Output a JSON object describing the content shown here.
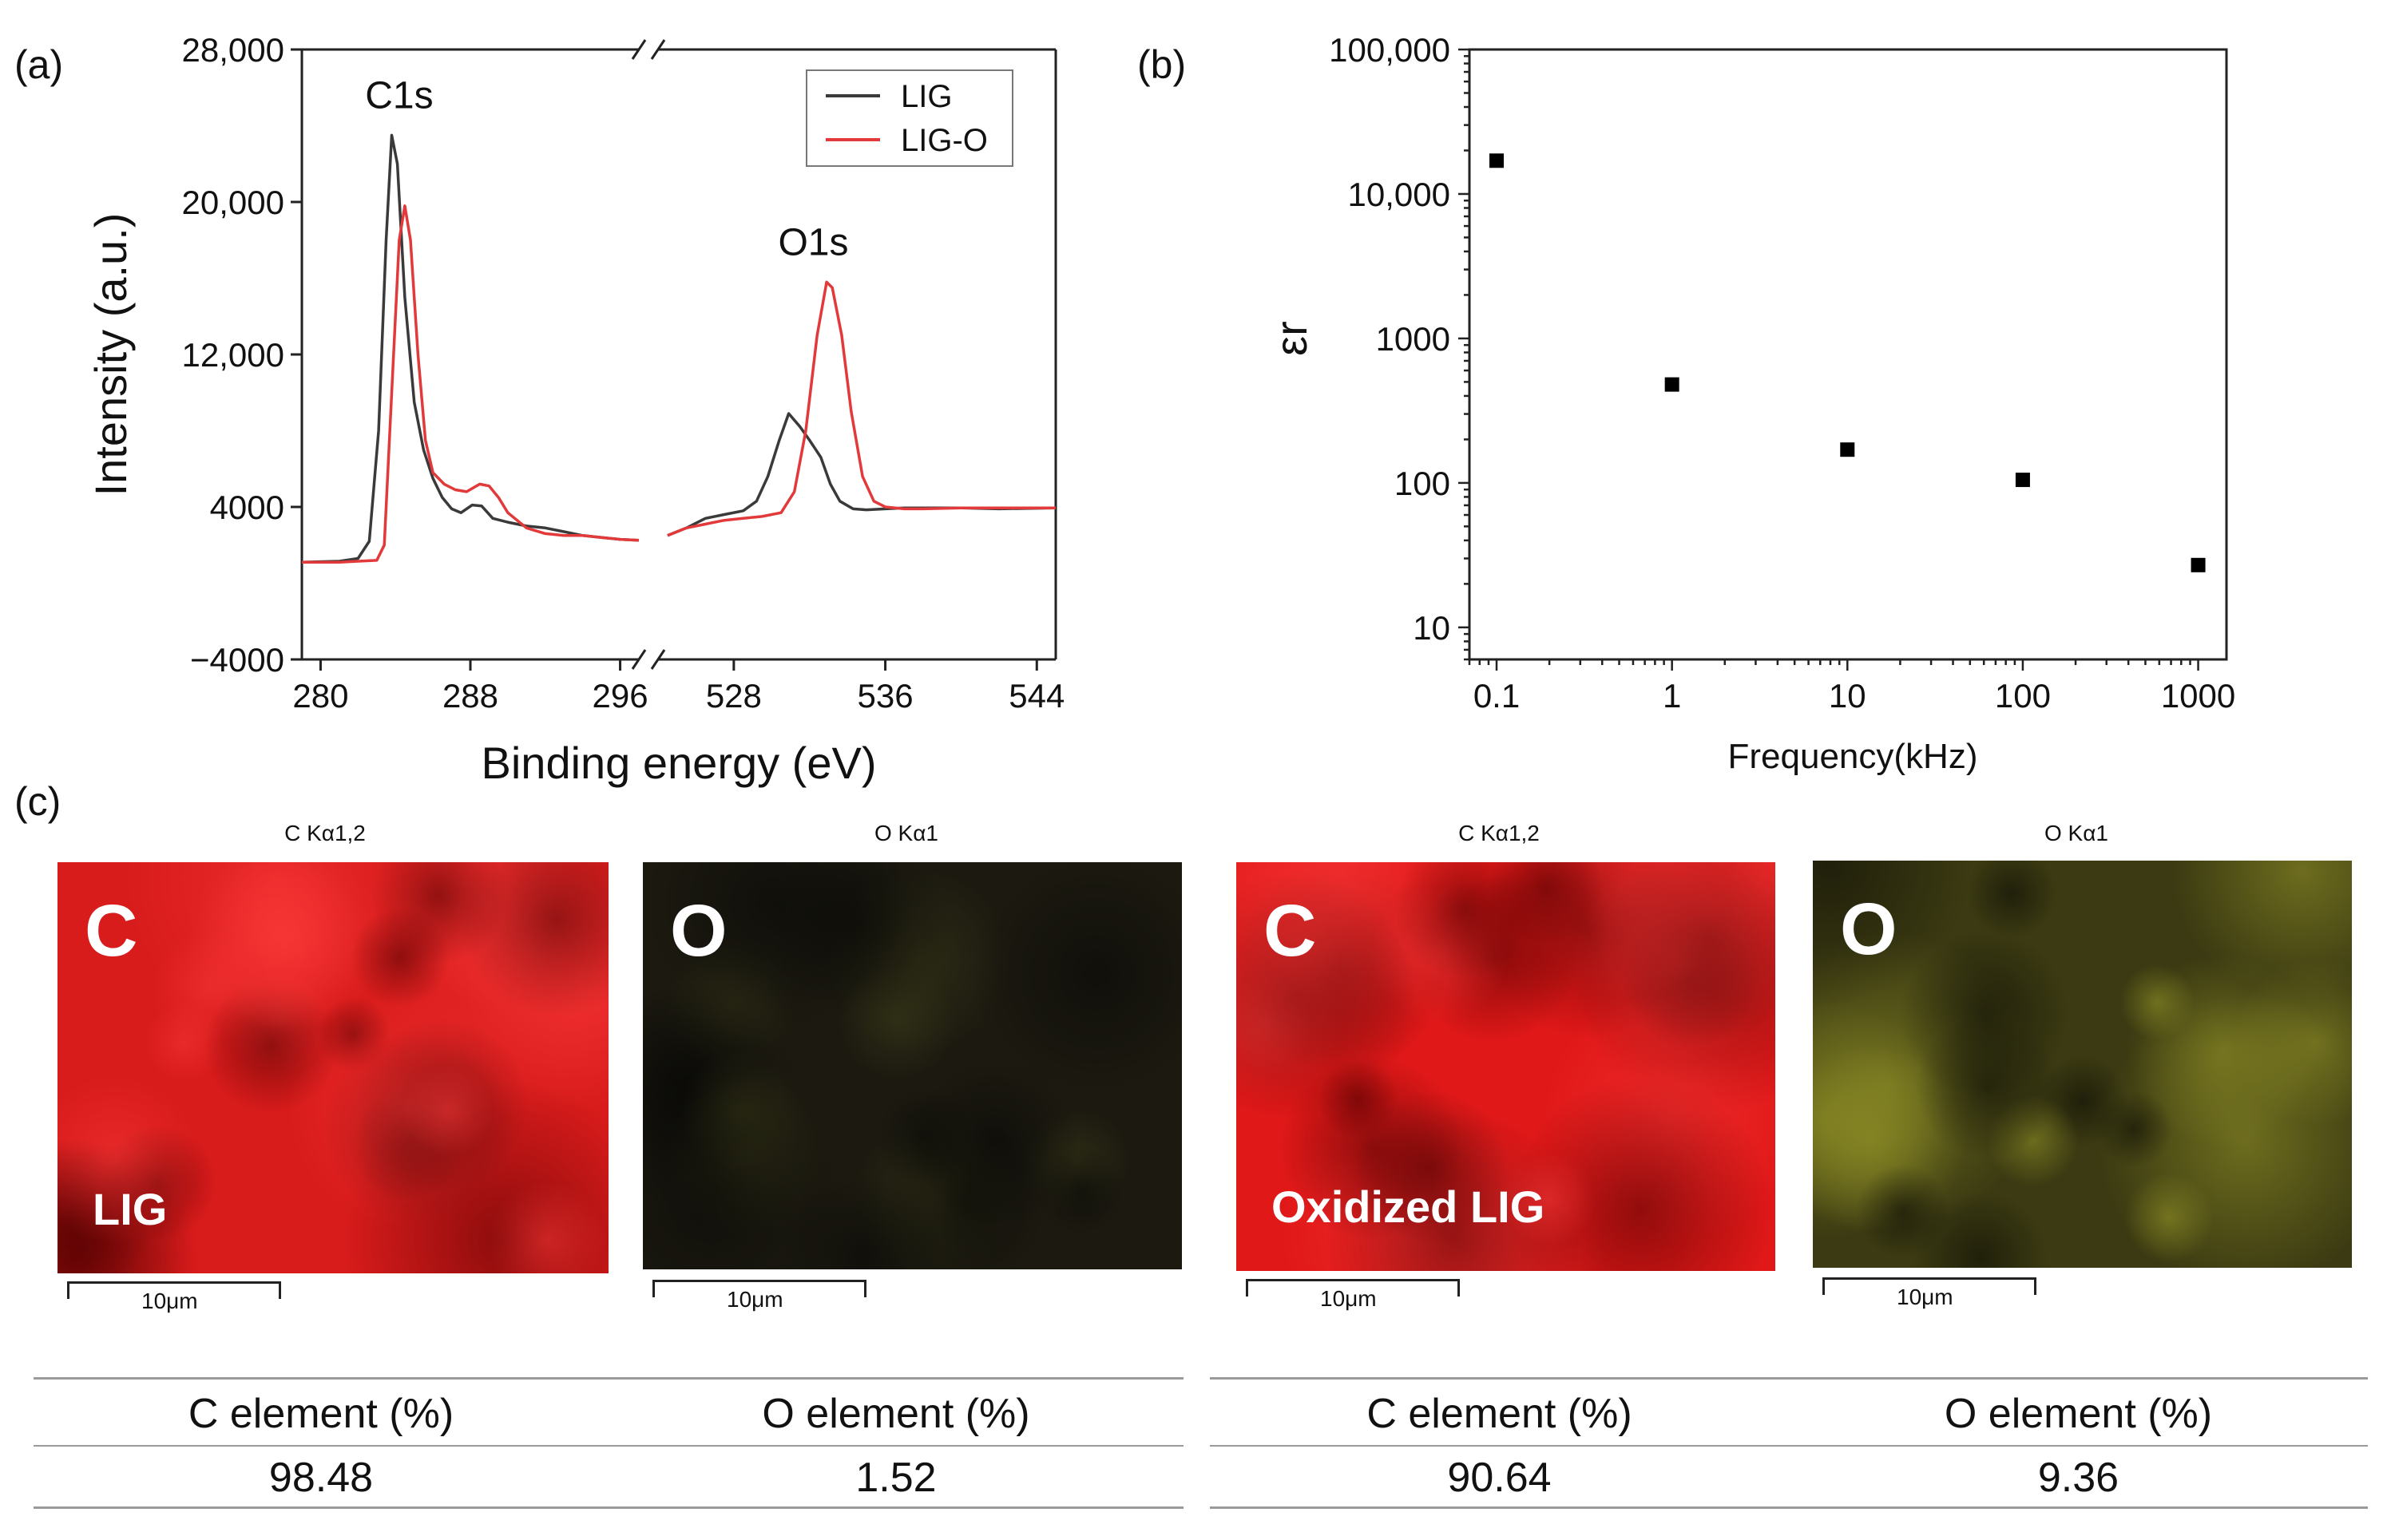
{
  "panel_labels": {
    "a": "(a)",
    "b": "(b)",
    "c": "(c)"
  },
  "chart_data": [
    {
      "type": "line",
      "panel": "a",
      "xlabel": "Binding energy (eV)",
      "ylabel": "Intensity (a.u.)",
      "ylim": [
        -4000,
        28000
      ],
      "yticks": [
        -4000,
        4000,
        12000,
        20000,
        28000
      ],
      "ytick_labels": [
        "−4000",
        "4000",
        "12,000",
        "20,000",
        "28,000"
      ],
      "x_broken_axis": true,
      "xlim_segments": [
        [
          279,
          297
        ],
        [
          524,
          545
        ]
      ],
      "xticks": [
        280,
        288,
        296,
        528,
        536,
        544
      ],
      "xtick_labels": [
        "280",
        "288",
        "296",
        "528",
        "536",
        "544"
      ],
      "legend": "top-right",
      "annotations": [
        {
          "text": "C1s",
          "x": 284.2,
          "y": 24500
        },
        {
          "text": "O1s",
          "x": 532.2,
          "y": 16800
        }
      ],
      "series": [
        {
          "name": "LIG",
          "color": "#3a3a3a",
          "points": [
            [
              279,
              1100
            ],
            [
              281,
              1150
            ],
            [
              282,
              1300
            ],
            [
              282.6,
              2200
            ],
            [
              283.1,
              8000
            ],
            [
              283.5,
              18000
            ],
            [
              283.8,
              23500
            ],
            [
              284.1,
              22000
            ],
            [
              284.5,
              15000
            ],
            [
              285,
              9500
            ],
            [
              285.5,
              7000
            ],
            [
              286,
              5500
            ],
            [
              286.5,
              4500
            ],
            [
              287,
              3900
            ],
            [
              287.5,
              3700
            ],
            [
              288.1,
              4100
            ],
            [
              288.6,
              4050
            ],
            [
              289.2,
              3400
            ],
            [
              290,
              3200
            ],
            [
              291,
              3000
            ],
            [
              292,
              2900
            ],
            [
              293,
              2700
            ],
            [
              294,
              2500
            ],
            [
              295,
              2400
            ],
            [
              296,
              2300
            ],
            [
              297,
              2250
            ]
          ],
          "points2": [
            [
              524.5,
              2500
            ],
            [
              525.5,
              2900
            ],
            [
              526.5,
              3400
            ],
            [
              527.5,
              3600
            ],
            [
              528.5,
              3800
            ],
            [
              529.2,
              4300
            ],
            [
              529.8,
              5600
            ],
            [
              530.4,
              7500
            ],
            [
              530.9,
              8900
            ],
            [
              531.5,
              8200
            ],
            [
              532,
              7500
            ],
            [
              532.6,
              6600
            ],
            [
              533.1,
              5200
            ],
            [
              533.6,
              4300
            ],
            [
              534.3,
              3900
            ],
            [
              535,
              3850
            ],
            [
              536,
              3900
            ],
            [
              537,
              3950
            ],
            [
              538,
              3950
            ],
            [
              540,
              3950
            ],
            [
              542,
              3900
            ],
            [
              545,
              3950
            ]
          ]
        },
        {
          "name": "LIG-O",
          "color": "#e23a3a",
          "points": [
            [
              279,
              1100
            ],
            [
              281,
              1100
            ],
            [
              282,
              1150
            ],
            [
              283,
              1200
            ],
            [
              283.4,
              2000
            ],
            [
              283.8,
              10000
            ],
            [
              284.2,
              18000
            ],
            [
              284.5,
              19800
            ],
            [
              284.8,
              18000
            ],
            [
              285.2,
              12000
            ],
            [
              285.6,
              7500
            ],
            [
              286,
              5800
            ],
            [
              286.6,
              5200
            ],
            [
              287.2,
              4900
            ],
            [
              287.8,
              4800
            ],
            [
              288.5,
              5200
            ],
            [
              289,
              5100
            ],
            [
              289.5,
              4500
            ],
            [
              290,
              3700
            ],
            [
              291,
              2900
            ],
            [
              292,
              2600
            ],
            [
              293,
              2500
            ],
            [
              294,
              2500
            ],
            [
              295,
              2400
            ],
            [
              296,
              2300
            ],
            [
              297,
              2250
            ]
          ],
          "points2": [
            [
              524.5,
              2500
            ],
            [
              525.5,
              2900
            ],
            [
              526.5,
              3100
            ],
            [
              527.5,
              3300
            ],
            [
              528.5,
              3400
            ],
            [
              529.5,
              3500
            ],
            [
              530.5,
              3700
            ],
            [
              531.2,
              4800
            ],
            [
              531.8,
              8000
            ],
            [
              532.4,
              13000
            ],
            [
              532.9,
              15800
            ],
            [
              533.2,
              15500
            ],
            [
              533.7,
              13000
            ],
            [
              534.2,
              9000
            ],
            [
              534.8,
              5600
            ],
            [
              535.4,
              4300
            ],
            [
              536,
              4000
            ],
            [
              537,
              3900
            ],
            [
              538,
              3900
            ],
            [
              540,
              3950
            ],
            [
              542,
              3950
            ],
            [
              545,
              3950
            ]
          ]
        }
      ]
    },
    {
      "type": "scatter",
      "panel": "b",
      "xlabel": "Frequency(kHz)",
      "ylabel": "εr",
      "x_scale": "log",
      "y_scale": "log",
      "xlim": [
        0.07,
        1450
      ],
      "ylim": [
        6,
        100000
      ],
      "xticks": [
        0.1,
        1,
        10,
        100,
        1000
      ],
      "xtick_labels": [
        "0.1",
        "1",
        "10",
        "100",
        "1000"
      ],
      "yticks": [
        10,
        100,
        1000,
        10000,
        100000
      ],
      "ytick_labels": [
        "10",
        "100",
        "1000",
        "10,000",
        "100,000"
      ],
      "series": [
        {
          "color": "#000000",
          "x": [
            0.1,
            1,
            10,
            100,
            1000
          ],
          "y": [
            17000,
            480,
            170,
            105,
            27
          ]
        }
      ]
    }
  ],
  "eds": {
    "maps": [
      {
        "title": "C Kα1,2",
        "letter": "C",
        "tag": "LIG",
        "color": "#d81b1b",
        "scale": "10μm"
      },
      {
        "title": "O Kα1",
        "letter": "O",
        "tag": "",
        "color": "#1c1a10",
        "scale": "10μm"
      },
      {
        "title": "C Kα1,2",
        "letter": "C",
        "tag": "Oxidized LIG",
        "color": "#e01818",
        "scale": "10μm"
      },
      {
        "title": "O Kα1",
        "letter": "O",
        "tag": "",
        "color": "#3b3a12",
        "scale": "10μm"
      }
    ],
    "tables": [
      {
        "headers": [
          "C element (%)",
          "O element (%)"
        ],
        "values": [
          "98.48",
          "1.52"
        ]
      },
      {
        "headers": [
          "C element (%)",
          "O element (%)"
        ],
        "values": [
          "90.64",
          "9.36"
        ]
      }
    ]
  }
}
